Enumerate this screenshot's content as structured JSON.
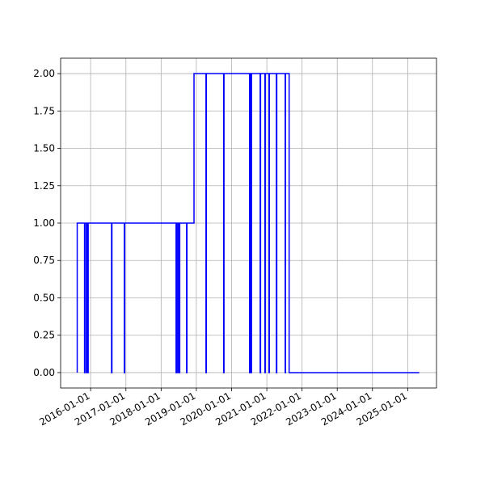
{
  "chart_data": {
    "type": "line",
    "x": [
      "2015-08-15",
      "2015-08-15",
      "2015-10-30",
      "2015-10-30",
      "2015-11-03",
      "2015-11-03",
      "2015-11-18",
      "2015-11-18",
      "2015-11-22",
      "2015-11-22",
      "2015-12-03",
      "2015-12-03",
      "2015-12-07",
      "2015-12-07",
      "2016-08-05",
      "2016-08-05",
      "2016-08-09",
      "2016-08-09",
      "2016-12-15",
      "2016-12-15",
      "2016-12-19",
      "2016-12-19",
      "2018-06-05",
      "2018-06-05",
      "2018-06-09",
      "2018-06-09",
      "2018-06-22",
      "2018-06-22",
      "2018-06-26",
      "2018-06-26",
      "2018-07-09",
      "2018-07-09",
      "2018-07-13",
      "2018-07-13",
      "2018-09-22",
      "2018-09-22",
      "2018-09-26",
      "2018-09-26",
      "2018-12-08",
      "2018-12-08",
      "2019-04-11",
      "2019-04-11",
      "2019-04-15",
      "2019-04-15",
      "2019-10-11",
      "2019-10-11",
      "2019-10-15",
      "2019-10-15",
      "2020-07-06",
      "2020-07-06",
      "2020-07-10",
      "2020-07-10",
      "2020-07-14",
      "2020-07-14",
      "2020-07-18",
      "2020-07-18",
      "2020-07-22",
      "2020-07-22",
      "2020-07-26",
      "2020-07-26",
      "2020-10-24",
      "2020-10-24",
      "2020-10-28",
      "2020-10-28",
      "2020-12-12",
      "2020-12-12",
      "2020-12-16",
      "2020-12-16",
      "2021-01-23",
      "2021-01-23",
      "2021-01-27",
      "2021-01-27",
      "2021-04-10",
      "2021-04-10",
      "2021-04-14",
      "2021-04-14",
      "2021-07-10",
      "2021-07-10",
      "2021-07-14",
      "2021-07-14",
      "2021-08-20",
      "2021-08-20",
      "2025-04-30"
    ],
    "series": [
      {
        "color": "#0000ff",
        "values": [
          0,
          1,
          1,
          0,
          0,
          1,
          1,
          0,
          0,
          1,
          1,
          0,
          0,
          1,
          1,
          0,
          0,
          1,
          1,
          0,
          0,
          1,
          1,
          0,
          0,
          1,
          1,
          0,
          0,
          1,
          1,
          0,
          0,
          1,
          1,
          0,
          0,
          1,
          1,
          2,
          2,
          0,
          0,
          2,
          2,
          0,
          0,
          2,
          2,
          0,
          0,
          2,
          2,
          0,
          0,
          2,
          2,
          0,
          0,
          2,
          2,
          0,
          0,
          2,
          2,
          0,
          0,
          2,
          2,
          0,
          0,
          2,
          2,
          0,
          0,
          2,
          2,
          0,
          0,
          2,
          2,
          0,
          0
        ]
      }
    ],
    "xlim": [
      "2015-02-24",
      "2025-10-26"
    ],
    "xticks": [
      "2016-01-01",
      "2017-01-01",
      "2018-01-01",
      "2019-01-01",
      "2020-01-01",
      "2021-01-01",
      "2022-01-01",
      "2023-01-01",
      "2024-01-01",
      "2025-01-01"
    ],
    "ylim": [
      -0.103,
      2.103
    ],
    "yticks": [
      {
        "value": 0,
        "label": "0.00"
      },
      {
        "value": 0.25,
        "label": "0.25"
      },
      {
        "value": 0.5,
        "label": "0.50"
      },
      {
        "value": 0.75,
        "label": "0.75"
      },
      {
        "value": 1,
        "label": "1.00"
      },
      {
        "value": 1.25,
        "label": "1.25"
      },
      {
        "value": 1.5,
        "label": "1.50"
      },
      {
        "value": 1.75,
        "label": "1.75"
      },
      {
        "value": 2,
        "label": "2.00"
      }
    ],
    "grid": true
  }
}
